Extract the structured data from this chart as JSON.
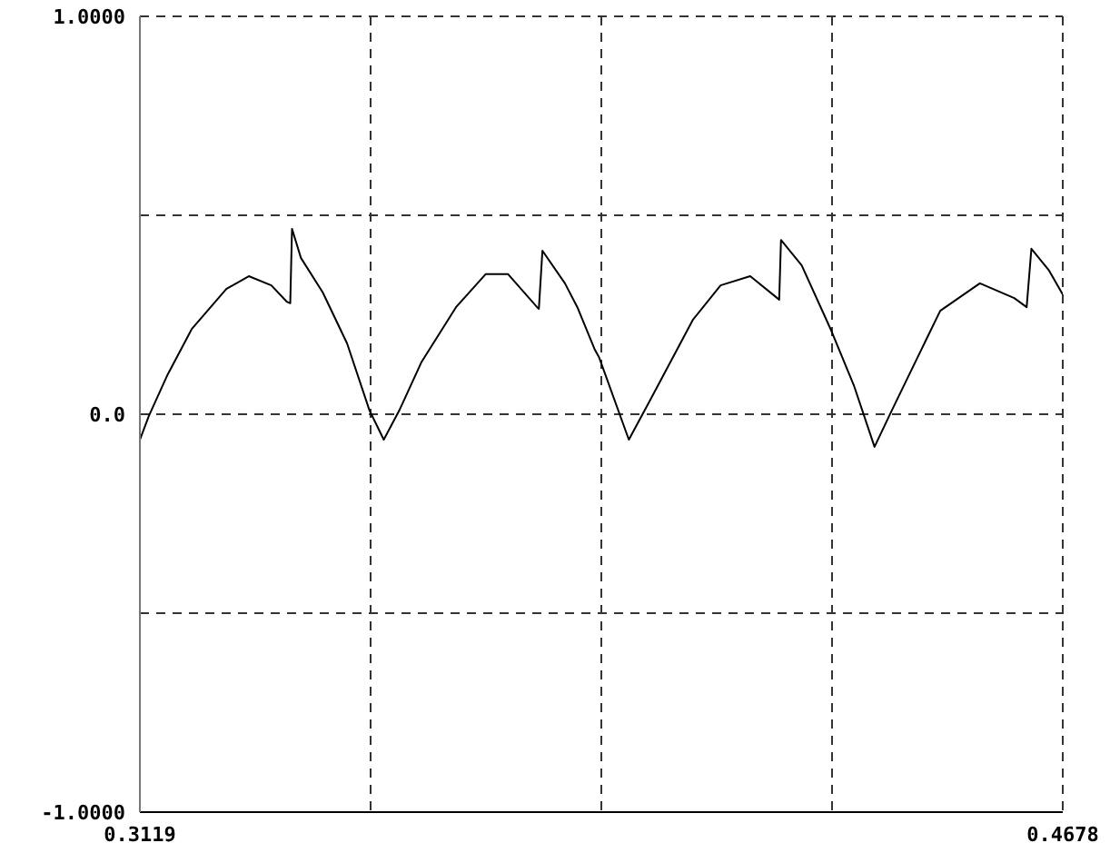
{
  "chart_data": {
    "type": "line",
    "x": [
      0.3119,
      0.3134,
      0.3166,
      0.3207,
      0.3265,
      0.3303,
      0.3341,
      0.3367,
      0.3373,
      0.3376,
      0.3391,
      0.3428,
      0.3469,
      0.3507,
      0.3531,
      0.3557,
      0.3595,
      0.3653,
      0.3703,
      0.3741,
      0.379,
      0.3793,
      0.3799,
      0.3837,
      0.3858,
      0.3887,
      0.3895,
      0.3945,
      0.3983,
      0.4053,
      0.41,
      0.415,
      0.4199,
      0.4202,
      0.4237,
      0.4287,
      0.4325,
      0.436,
      0.4389,
      0.4471,
      0.4538,
      0.4596,
      0.4617,
      0.4625,
      0.4655,
      0.4678
    ],
    "series": [
      {
        "color": "#000000",
        "values": [
          -0.064,
          -0.005,
          0.1,
          0.215,
          0.315,
          0.347,
          0.324,
          0.283,
          0.279,
          0.466,
          0.393,
          0.306,
          0.178,
          0.009,
          -0.064,
          0.009,
          0.132,
          0.269,
          0.352,
          0.352,
          0.269,
          0.265,
          0.411,
          0.329,
          0.269,
          0.164,
          0.142,
          -0.064,
          0.041,
          0.237,
          0.324,
          0.347,
          0.288,
          0.438,
          0.374,
          0.21,
          0.073,
          -0.082,
          0.009,
          0.26,
          0.329,
          0.292,
          0.269,
          0.416,
          0.361,
          0.301
        ]
      }
    ],
    "xlim": [
      0.3119,
      0.4678
    ],
    "xticks": [
      0.3119,
      {
        "value": 0.350875,
        "label": null
      },
      {
        "value": 0.38985,
        "label": null
      },
      {
        "value": 0.428825,
        "label": null
      },
      0.4678
    ],
    "ylim": [
      -1,
      1
    ],
    "yticks": [
      {
        "value": -1,
        "label": "-1.0000"
      },
      {
        "value": -0.5,
        "label": null
      },
      {
        "value": 0,
        "label": "0.0"
      },
      {
        "value": 0.5,
        "label": null
      },
      {
        "value": 1,
        "label": "1.0000"
      }
    ],
    "grid": true,
    "marker": "none",
    "line_style": "solid"
  }
}
